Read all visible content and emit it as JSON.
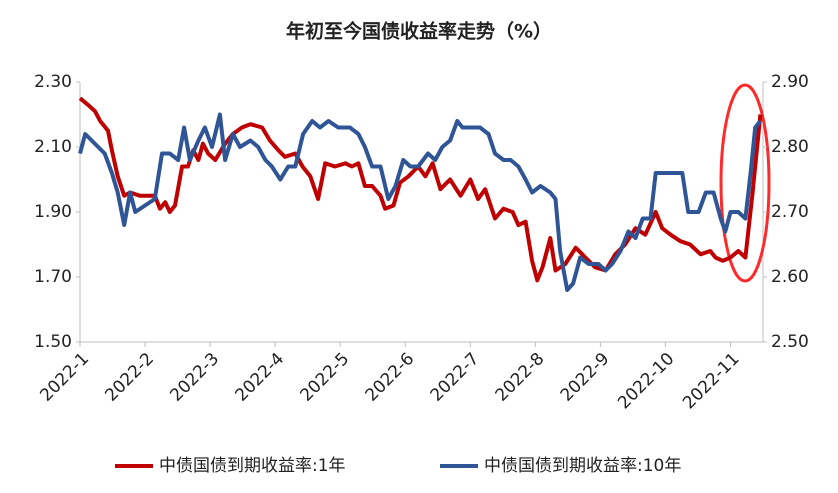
{
  "chart_data": {
    "type": "line",
    "title": "年初至今国债收益率走势（%）",
    "xlim": [
      0,
      10.5
    ],
    "xticks": [
      {
        "value": 0,
        "label": "2022-1"
      },
      {
        "value": 1,
        "label": "2022-2"
      },
      {
        "value": 2,
        "label": "2022-3"
      },
      {
        "value": 3,
        "label": "2022-4"
      },
      {
        "value": 4,
        "label": "2022-5"
      },
      {
        "value": 5,
        "label": "2022-6"
      },
      {
        "value": 6,
        "label": "2022-7"
      },
      {
        "value": 7,
        "label": "2022-8"
      },
      {
        "value": 8,
        "label": "2022-9"
      },
      {
        "value": 9,
        "label": "2022-10"
      },
      {
        "value": 10,
        "label": "2022-11"
      }
    ],
    "ylim": [
      1.5,
      2.3
    ],
    "yticks": [
      {
        "value": 1.5,
        "label": "1.50"
      },
      {
        "value": 1.7,
        "label": "1.70"
      },
      {
        "value": 1.9,
        "label": "1.90"
      },
      {
        "value": 2.1,
        "label": "2.10"
      },
      {
        "value": 2.3,
        "label": "2.30"
      }
    ],
    "y2lim": [
      2.5,
      2.9
    ],
    "y2ticks": [
      {
        "value": 2.5,
        "label": "2.50"
      },
      {
        "value": 2.6,
        "label": "2.60"
      },
      {
        "value": 2.7,
        "label": "2.70"
      },
      {
        "value": 2.8,
        "label": "2.80"
      },
      {
        "value": 2.9,
        "label": "2.90"
      }
    ],
    "legend": "bottom",
    "series": [
      {
        "name": "中债国债到期收益率:1年",
        "color": "#c00000",
        "x": [
          0,
          0.12,
          0.23,
          0.31,
          0.43,
          0.49,
          0.58,
          0.68,
          0.77,
          0.92,
          1.15,
          1.23,
          1.31,
          1.38,
          1.46,
          1.57,
          1.66,
          1.74,
          1.82,
          1.89,
          1.97,
          2.08,
          2.23,
          2.35,
          2.49,
          2.62,
          2.8,
          2.92,
          3.05,
          3.15,
          3.31,
          3.42,
          3.54,
          3.66,
          3.77,
          3.92,
          4.08,
          4.18,
          4.28,
          4.38,
          4.49,
          4.62,
          4.69,
          4.82,
          4.92,
          5.05,
          5.2,
          5.31,
          5.42,
          5.54,
          5.69,
          5.85,
          5.94,
          6,
          6.12,
          6.23,
          6.38,
          6.51,
          6.65,
          6.74,
          6.85,
          6.95,
          7.03,
          7.11,
          7.23,
          7.31,
          7.46,
          7.62,
          7.77,
          7.92,
          8.08,
          8.23,
          8.38,
          8.54,
          8.69,
          8.85,
          8.95,
          9.08,
          9.23,
          9.38,
          9.54,
          9.69,
          9.77,
          9.88,
          10,
          10.12,
          10.23,
          10.34,
          10.46
        ],
        "values": [
          2.25,
          2.23,
          2.21,
          2.18,
          2.15,
          2.09,
          2.01,
          1.95,
          1.96,
          1.95,
          1.95,
          1.91,
          1.93,
          1.9,
          1.92,
          2.04,
          2.04,
          2.09,
          2.06,
          2.11,
          2.08,
          2.06,
          2.11,
          2.14,
          2.16,
          2.17,
          2.16,
          2.12,
          2.09,
          2.07,
          2.08,
          2.04,
          2.01,
          1.94,
          2.05,
          2.04,
          2.05,
          2.04,
          2.05,
          1.98,
          1.98,
          1.95,
          1.91,
          1.92,
          1.99,
          2.01,
          2.04,
          2.01,
          2.05,
          1.97,
          2.0,
          1.95,
          1.98,
          2.0,
          1.94,
          1.97,
          1.88,
          1.91,
          1.9,
          1.86,
          1.87,
          1.75,
          1.69,
          1.73,
          1.82,
          1.72,
          1.74,
          1.79,
          1.76,
          1.73,
          1.72,
          1.77,
          1.8,
          1.85,
          1.83,
          1.9,
          1.85,
          1.83,
          1.81,
          1.8,
          1.77,
          1.78,
          1.76,
          1.75,
          1.76,
          1.78,
          1.76,
          1.96,
          2.2
        ]
      },
      {
        "name": "中债国债到期收益率:10年",
        "color": "#2f5597",
        "axis": "y2",
        "x": [
          0,
          0.08,
          0.18,
          0.28,
          0.38,
          0.49,
          0.58,
          0.68,
          0.77,
          0.85,
          1,
          1.15,
          1.26,
          1.38,
          1.51,
          1.6,
          1.69,
          1.82,
          1.92,
          2.03,
          2.15,
          2.23,
          2.35,
          2.46,
          2.62,
          2.74,
          2.85,
          2.95,
          3.08,
          3.2,
          3.31,
          3.43,
          3.57,
          3.69,
          3.82,
          3.97,
          4.15,
          4.28,
          4.38,
          4.49,
          4.62,
          4.74,
          4.85,
          4.97,
          5.08,
          5.2,
          5.35,
          5.46,
          5.57,
          5.69,
          5.8,
          5.88,
          6,
          6.15,
          6.28,
          6.38,
          6.51,
          6.62,
          6.74,
          6.85,
          6.95,
          7.08,
          7.23,
          7.31,
          7.38,
          7.49,
          7.58,
          7.69,
          7.82,
          7.97,
          8.08,
          8.18,
          8.31,
          8.43,
          8.54,
          8.65,
          8.77,
          8.85,
          9,
          9.15,
          9.26,
          9.35,
          9.51,
          9.62,
          9.74,
          9.85,
          9.92,
          10,
          10.12,
          10.23,
          10.31,
          10.38,
          10.46
        ],
        "values": [
          2.79,
          2.82,
          2.81,
          2.8,
          2.79,
          2.76,
          2.73,
          2.68,
          2.73,
          2.7,
          2.71,
          2.72,
          2.79,
          2.79,
          2.78,
          2.83,
          2.78,
          2.81,
          2.83,
          2.8,
          2.85,
          2.78,
          2.82,
          2.8,
          2.81,
          2.8,
          2.78,
          2.77,
          2.75,
          2.77,
          2.77,
          2.82,
          2.84,
          2.83,
          2.84,
          2.83,
          2.83,
          2.82,
          2.8,
          2.77,
          2.77,
          2.72,
          2.74,
          2.78,
          2.77,
          2.77,
          2.79,
          2.78,
          2.8,
          2.81,
          2.84,
          2.83,
          2.83,
          2.83,
          2.82,
          2.79,
          2.78,
          2.78,
          2.77,
          2.75,
          2.73,
          2.74,
          2.73,
          2.72,
          2.64,
          2.58,
          2.59,
          2.63,
          2.62,
          2.62,
          2.61,
          2.62,
          2.64,
          2.67,
          2.66,
          2.69,
          2.69,
          2.76,
          2.76,
          2.76,
          2.76,
          2.7,
          2.7,
          2.73,
          2.73,
          2.69,
          2.67,
          2.7,
          2.7,
          2.69,
          2.76,
          2.83,
          2.84
        ]
      }
    ]
  }
}
